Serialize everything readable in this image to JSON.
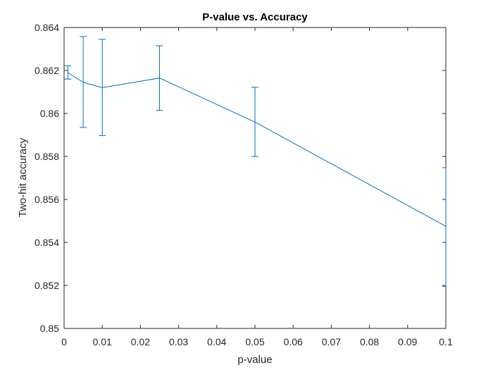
{
  "chart_data": {
    "type": "line",
    "title": "P-value vs. Accuracy",
    "xlabel": "p-value",
    "ylabel": "Two-hit accuracy",
    "xlim": [
      0,
      0.1
    ],
    "ylim": [
      0.85,
      0.864
    ],
    "x_ticks": [
      0,
      0.01,
      0.02,
      0.03,
      0.04,
      0.05,
      0.06,
      0.07,
      0.08,
      0.09,
      0.1
    ],
    "x_tick_labels": [
      "0",
      "0.01",
      "0.02",
      "0.03",
      "0.04",
      "0.05",
      "0.06",
      "0.07",
      "0.08",
      "0.09",
      "0.1"
    ],
    "y_ticks": [
      0.85,
      0.852,
      0.854,
      0.856,
      0.858,
      0.86,
      0.862,
      0.864
    ],
    "y_tick_labels": [
      "0.85",
      "0.852",
      "0.854",
      "0.856",
      "0.858",
      "0.86",
      "0.862",
      "0.864"
    ],
    "grid": false,
    "series": [
      {
        "name": "Two-hit accuracy",
        "color": "#0072BD",
        "x": [
          0.001,
          0.005,
          0.01,
          0.025,
          0.05,
          0.1
        ],
        "y": [
          0.8619,
          0.86145,
          0.8612,
          0.86165,
          0.8596,
          0.85475
        ],
        "error_low": [
          0.8616,
          0.85935,
          0.85897,
          0.86015,
          0.858,
          0.85195
        ],
        "error_high": [
          0.86222,
          0.86358,
          0.86345,
          0.86315,
          0.86122,
          0.85748
        ]
      }
    ]
  }
}
